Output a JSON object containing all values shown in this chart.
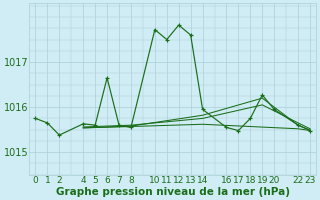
{
  "background_color": "#d0ecf4",
  "grid_color": "#aacfdb",
  "line_color": "#1a6e1a",
  "xlabel": "Graphe pression niveau de la mer (hPa)",
  "xlabel_fontsize": 7.5,
  "ylabel_fontsize": 7,
  "tick_fontsize": 6.5,
  "xlim": [
    -0.5,
    23.5
  ],
  "ylim": [
    1014.5,
    1018.3
  ],
  "yticks": [
    1015,
    1016,
    1017
  ],
  "xticks": [
    0,
    1,
    2,
    4,
    5,
    6,
    7,
    8,
    10,
    11,
    12,
    13,
    14,
    16,
    17,
    18,
    19,
    20,
    22,
    23
  ],
  "series_main": [
    [
      0,
      1015.75
    ],
    [
      1,
      1015.65
    ],
    [
      2,
      1015.38
    ],
    [
      4,
      1015.63
    ],
    [
      5,
      1015.6
    ],
    [
      6,
      1016.65
    ],
    [
      7,
      1015.6
    ],
    [
      8,
      1015.55
    ],
    [
      10,
      1017.72
    ],
    [
      11,
      1017.5
    ],
    [
      12,
      1017.82
    ],
    [
      13,
      1017.6
    ],
    [
      14,
      1015.95
    ],
    [
      16,
      1015.55
    ],
    [
      17,
      1015.48
    ],
    [
      18,
      1015.75
    ],
    [
      19,
      1016.27
    ],
    [
      20,
      1015.95
    ],
    [
      22,
      1015.6
    ],
    [
      23,
      1015.48
    ]
  ],
  "series_line2": [
    [
      4,
      1015.56
    ],
    [
      8,
      1015.6
    ],
    [
      14,
      1015.75
    ],
    [
      19,
      1016.05
    ],
    [
      22,
      1015.65
    ],
    [
      23,
      1015.52
    ]
  ],
  "series_line3": [
    [
      4,
      1015.54
    ],
    [
      8,
      1015.58
    ],
    [
      14,
      1015.82
    ],
    [
      19,
      1016.2
    ],
    [
      22,
      1015.6
    ],
    [
      23,
      1015.49
    ]
  ],
  "series_line4": [
    [
      4,
      1015.54
    ],
    [
      8,
      1015.57
    ],
    [
      14,
      1015.62
    ],
    [
      22,
      1015.52
    ],
    [
      23,
      1015.48
    ]
  ]
}
